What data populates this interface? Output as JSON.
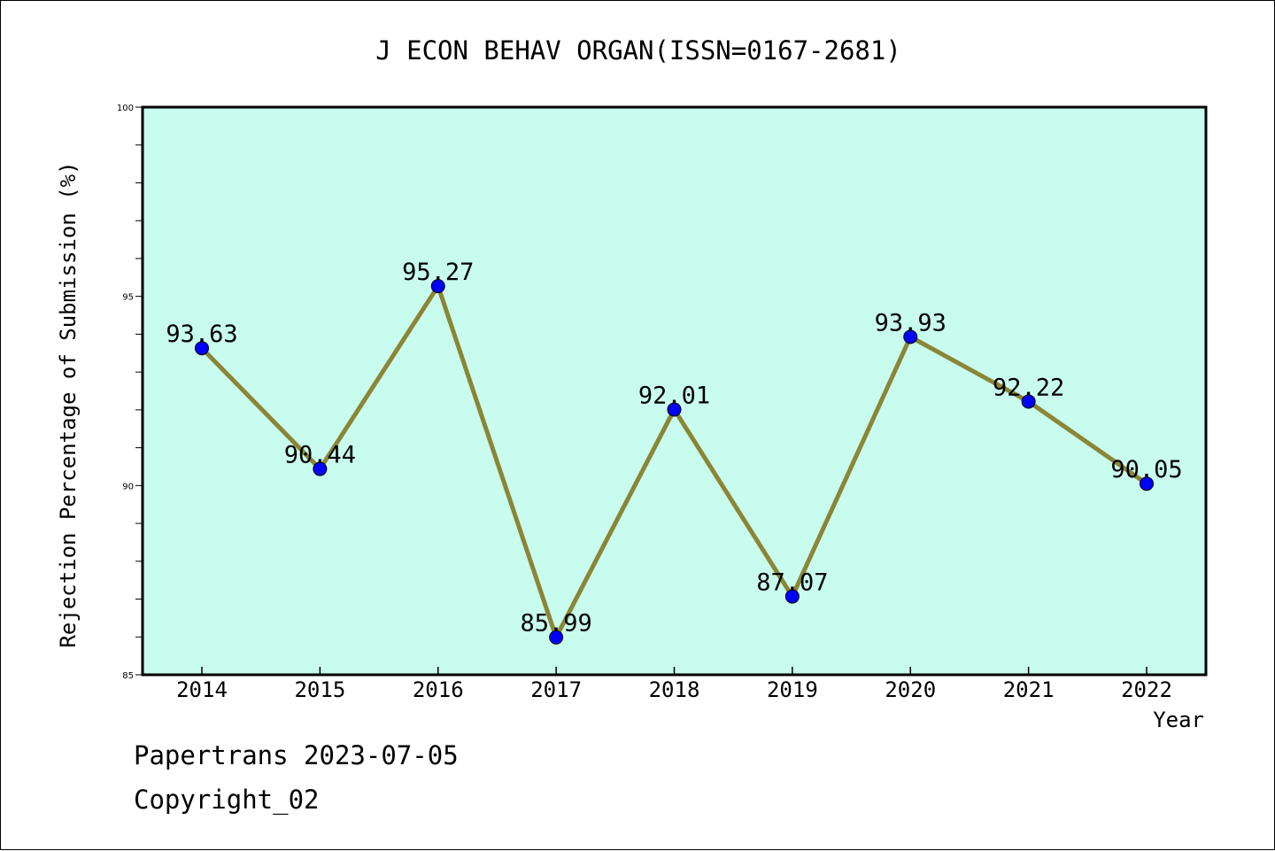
{
  "chart_data": {
    "type": "line",
    "title": "J ECON BEHAV ORGAN(ISSN=0167-2681)",
    "xlabel": "Year",
    "ylabel": "Rejection Percentage of Submission (%)",
    "x": [
      "2014",
      "2015",
      "2016",
      "2017",
      "2018",
      "2019",
      "2020",
      "2021",
      "2022"
    ],
    "series": [
      {
        "values": [
          93.63,
          90.44,
          95.27,
          85.99,
          92.01,
          87.07,
          93.93,
          92.22,
          90.05
        ],
        "labels": [
          "93.63",
          "90.44",
          "95.27",
          "85.99",
          "92.01",
          "87.07",
          "93.93",
          "92.22",
          "90.05"
        ],
        "line_color": "#8b8536",
        "marker_color": "#0000ff"
      }
    ],
    "ylim": [
      85,
      100
    ],
    "yticks": [
      "85",
      "90",
      "95",
      "100"
    ],
    "plot_background": "#c8fcee",
    "grid": false
  },
  "footer": {
    "line1": "Papertrans 2023-07-05",
    "line2": "Copyright_02"
  }
}
